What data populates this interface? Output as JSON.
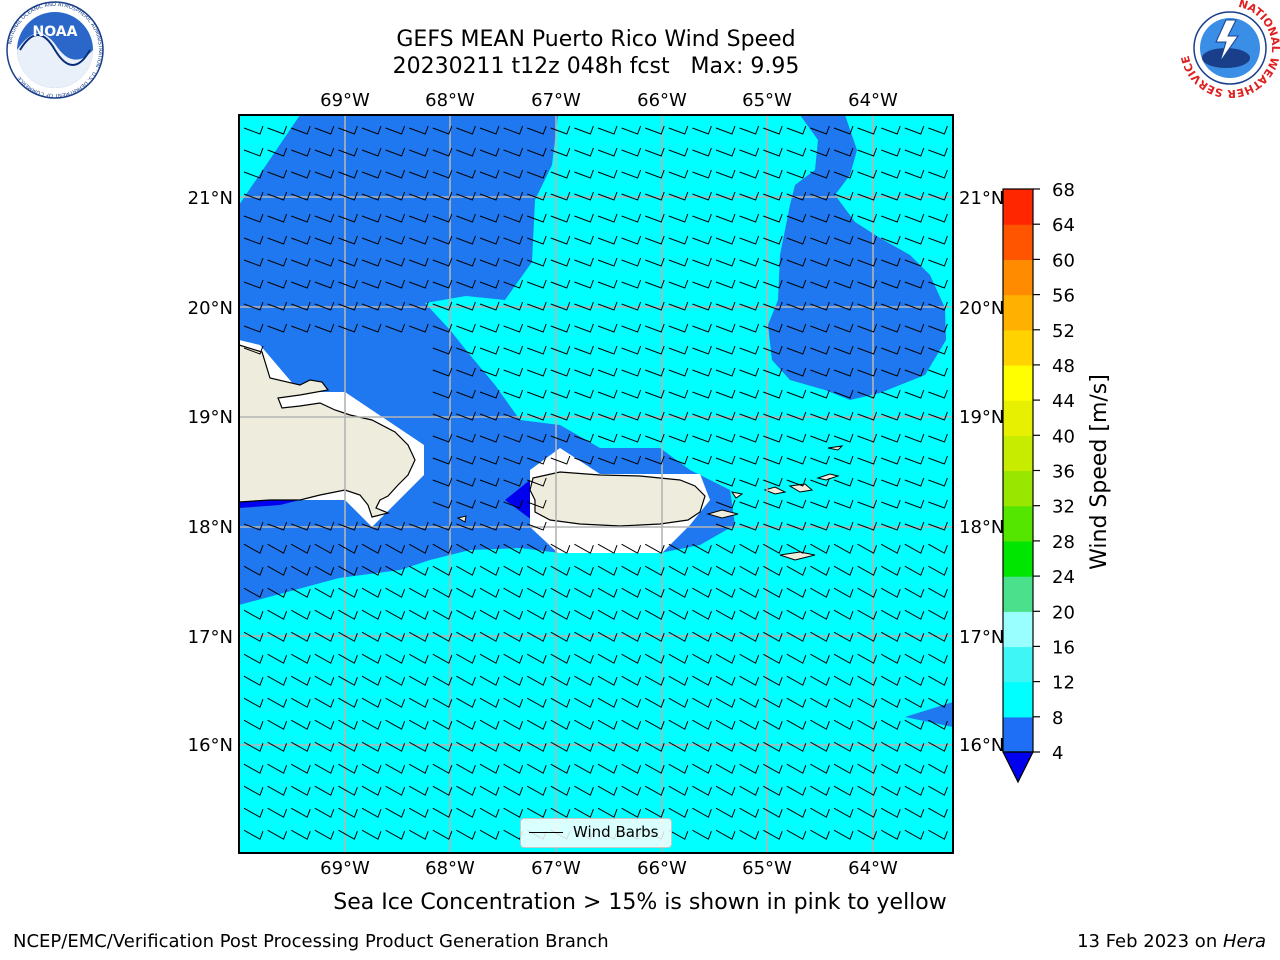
{
  "header": {
    "title_line1": "GEFS MEAN Puerto Rico Wind Speed",
    "title_line2": "20230211 t12z 048h fcst   Max: 9.95"
  },
  "logos": {
    "left": "NOAA",
    "left_ring_text": "NATIONAL OCEANIC AND ATMOSPHERIC ADMINISTRATION · U.S. DEPARTMENT OF COMMERCE",
    "right_ring_text": "NATIONAL WEATHER SERVICE"
  },
  "map": {
    "lon_labels": [
      "69°W",
      "68°W",
      "67°W",
      "66°W",
      "65°W",
      "64°W"
    ],
    "lat_labels": [
      "21°N",
      "20°N",
      "19°N",
      "18°N",
      "17°N",
      "16°N"
    ],
    "legend_label": "Wind Barbs",
    "colors": {
      "land": "#eeecdc",
      "band_4_8": "#1f78f0",
      "band_8_12": "#00ffff",
      "band_lt_4": "#0000ee",
      "grid": "#b4b4b4"
    }
  },
  "colorbar": {
    "label": "Wind Speed [m/s]",
    "ticks": [
      "4",
      "8",
      "12",
      "16",
      "20",
      "24",
      "28",
      "32",
      "36",
      "40",
      "44",
      "48",
      "52",
      "56",
      "60",
      "64",
      "68"
    ],
    "colors": [
      "#1e6ff5",
      "#00ffff",
      "#3ff6f6",
      "#99ffff",
      "#4be08c",
      "#00e600",
      "#55e600",
      "#99e600",
      "#c8ec00",
      "#e6f000",
      "#ffff00",
      "#ffd200",
      "#ffb000",
      "#ff8c00",
      "#ff5500",
      "#ff2600",
      "#ff0000"
    ],
    "underflow_color": "#0000ee"
  },
  "subtitle": "Sea Ice Concentration > 15% is shown in pink to yellow",
  "footer": {
    "left": "NCEP/EMC/Verification Post Processing Product Generation Branch",
    "right_prefix": "13 Feb 2023 on ",
    "right_host": "Hera"
  }
}
